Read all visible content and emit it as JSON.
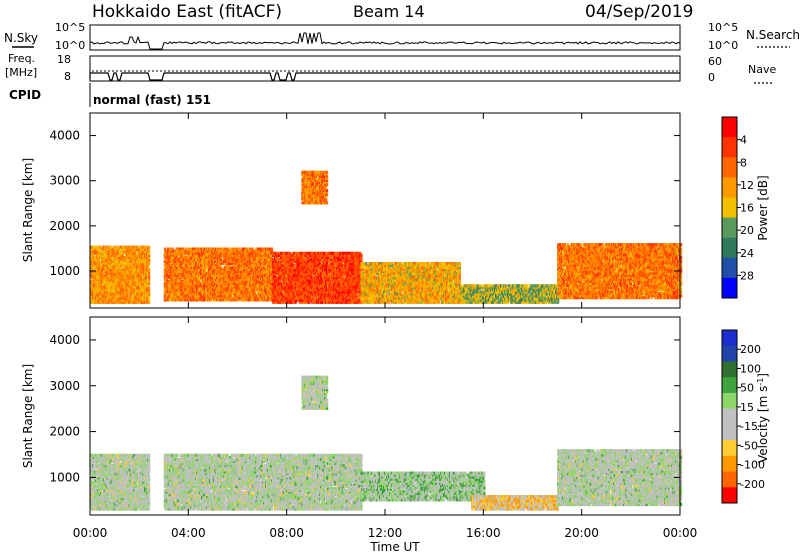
{
  "header": {
    "station": "Hokkaido East (fitACF)",
    "beam": "Beam 14",
    "date": "04/Sep/2019"
  },
  "top_panel": {
    "nsky_label": "N.Sky",
    "nsearch_label": "N.Search",
    "left_tick_top": "10^5",
    "left_tick_bottom": "10^0",
    "right_tick_top": "10^5",
    "right_tick_bottom": "10^0",
    "freq_label_line1": "Freq.",
    "freq_label_line2": "[MHz]",
    "freq_tick_top": "18",
    "freq_tick_bottom": "8",
    "nave_label": "Nave",
    "nave_tick_top": "60",
    "nave_tick_bottom": "0",
    "cpid_label": "CPID",
    "cpid_value": "normal (fast) 151"
  },
  "colors": {
    "power_scale": [
      "#0000ff",
      "#1f4fa8",
      "#2f7a5a",
      "#5a9a5a",
      "#f0c000",
      "#ff9900",
      "#ff6600",
      "#ff3300",
      "#ff0000"
    ],
    "velocity_scale": [
      "#ff0000",
      "#ff6600",
      "#ff9900",
      "#ffcc33",
      "#c0c0c0",
      "#c0c0c0",
      "#8fd66a",
      "#3fa33f",
      "#2f6f2f",
      "#2244aa",
      "#1a2fcc"
    ]
  },
  "chart_data": [
    {
      "type": "heatmap",
      "name": "power",
      "ylabel": "Slant Range [km]",
      "xlabel": "Time UT",
      "yticks": [
        "1000",
        "2000",
        "3000",
        "4000"
      ],
      "ylim": [
        180,
        4500
      ],
      "xticks": [
        "00:00",
        "04:00",
        "08:00",
        "12:00",
        "16:00",
        "20:00",
        "00:00"
      ],
      "xlim_hours": [
        0,
        24
      ],
      "colorbar_label": "Power [dB]",
      "colorbar_ticks": [
        "4",
        "8",
        "12",
        "16",
        "20",
        "24",
        "28"
      ],
      "colorbar_range": [
        0,
        32
      ],
      "regions": [
        {
          "t": [
            0.0,
            2.4
          ],
          "r": [
            300,
            1550
          ],
          "value": 20
        },
        {
          "t": [
            3.0,
            7.4
          ],
          "r": [
            350,
            1500
          ],
          "value": 22
        },
        {
          "t": [
            7.4,
            11.0
          ],
          "r": [
            300,
            1400
          ],
          "value": 26
        },
        {
          "t": [
            8.6,
            9.6
          ],
          "r": [
            2500,
            3200
          ],
          "value": 22
        },
        {
          "t": [
            11.0,
            15.0
          ],
          "r": [
            300,
            1200
          ],
          "value": 18
        },
        {
          "t": [
            15.0,
            19.0
          ],
          "r": [
            300,
            700
          ],
          "value": 14
        },
        {
          "t": [
            19.0,
            24.0
          ],
          "r": [
            400,
            1600
          ],
          "value": 22
        }
      ]
    },
    {
      "type": "heatmap",
      "name": "velocity",
      "ylabel": "Slant Range [km]",
      "xlabel": "Time UT",
      "yticks": [
        "1000",
        "2000",
        "3000",
        "4000"
      ],
      "ylim": [
        180,
        4500
      ],
      "xticks": [
        "00:00",
        "04:00",
        "08:00",
        "12:00",
        "16:00",
        "20:00",
        "00:00"
      ],
      "xlim_hours": [
        0,
        24
      ],
      "colorbar_label": "Velocity [m s-1]",
      "colorbar_ticks": [
        "200",
        "100",
        "50",
        "15",
        "-15",
        "-50",
        "-100",
        "-200"
      ],
      "colorbar_range": [
        -250,
        250
      ],
      "regions": [
        {
          "t": [
            0.0,
            2.4
          ],
          "r": [
            300,
            1500
          ],
          "value": 0
        },
        {
          "t": [
            3.0,
            11.0
          ],
          "r": [
            300,
            1500
          ],
          "value": 0
        },
        {
          "t": [
            8.6,
            9.6
          ],
          "r": [
            2500,
            3200
          ],
          "value": 0
        },
        {
          "t": [
            11.0,
            16.0
          ],
          "r": [
            500,
            1100
          ],
          "value": 30
        },
        {
          "t": [
            15.5,
            19.0
          ],
          "r": [
            300,
            600
          ],
          "value": -80
        },
        {
          "t": [
            19.0,
            24.0
          ],
          "r": [
            400,
            1600
          ],
          "value": 0
        }
      ]
    }
  ]
}
